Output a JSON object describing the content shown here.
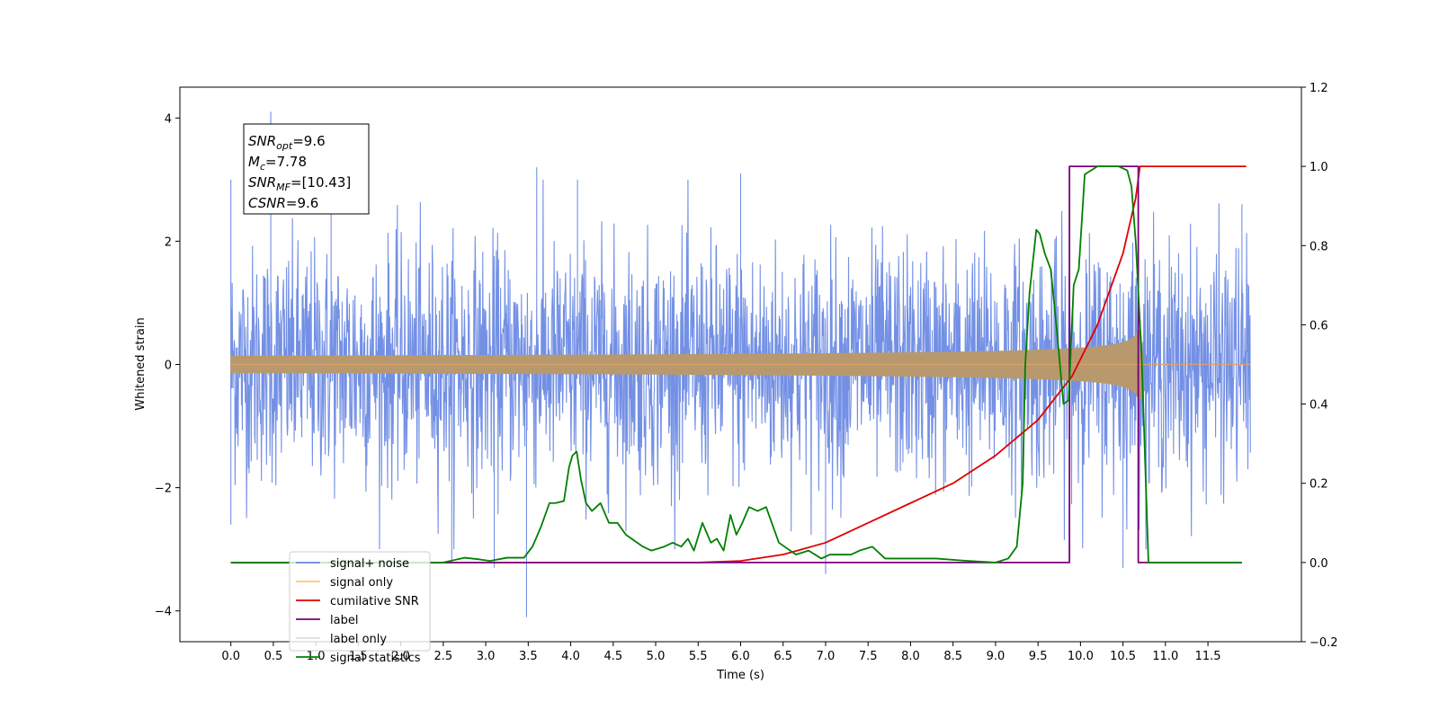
{
  "chart_data": {
    "type": "line",
    "xlabel": "Time (s)",
    "ylabel": "Whitened strain",
    "xlim": [
      -0.6,
      12.6
    ],
    "ylim": [
      -4.5,
      4.5
    ],
    "y2lim": [
      -0.2,
      1.2
    ],
    "xticks": [
      0.0,
      0.5,
      1.0,
      1.5,
      2.0,
      2.5,
      3.0,
      3.5,
      4.0,
      4.5,
      5.0,
      5.5,
      6.0,
      6.5,
      7.0,
      7.5,
      8.0,
      8.5,
      9.0,
      9.5,
      10.0,
      10.5,
      11.0,
      11.5
    ],
    "xtick_labels": [
      "0.0",
      "0.5",
      "1.0",
      "1.5",
      "2.0",
      "2.5",
      "3.0",
      "3.5",
      "4.0",
      "4.5",
      "5.0",
      "5.5",
      "6.0",
      "6.5",
      "7.0",
      "7.5",
      "8.0",
      "8.5",
      "9.0",
      "9.5",
      "10.0",
      "10.5",
      "11.0",
      "11.5"
    ],
    "yticks": [
      -4,
      -2,
      0,
      2,
      4
    ],
    "ytick_labels": [
      "−4",
      "−2",
      "0",
      "2",
      "4"
    ],
    "y2ticks": [
      -0.2,
      0.0,
      0.2,
      0.4,
      0.6,
      0.8,
      1.0,
      1.2
    ],
    "y2tick_labels": [
      "−0.2",
      "0.0",
      "0.2",
      "0.4",
      "0.6",
      "0.8",
      "1.0",
      "1.2"
    ],
    "grid": false,
    "legend_placement": "lower-left",
    "annotation": {
      "lines": [
        {
          "base": "SNR",
          "sub": "opt",
          "value": "=9.6"
        },
        {
          "base": "M",
          "sub": "c",
          "value": "=7.78"
        },
        {
          "base": "SNR",
          "sub": "MF",
          "value": "=[10.43]"
        },
        {
          "base": "CSNR",
          "sub": "",
          "value": "=9.6"
        }
      ]
    },
    "series": [
      {
        "name": "signal+ noise",
        "axis": "left",
        "color": "#6c8ae4",
        "style": "noise",
        "t_range": [
          0.0,
          12.0
        ],
        "std": 1.0,
        "spikes": [
          [
            0.0,
            3.0
          ],
          [
            0.0,
            -2.6
          ],
          [
            0.47,
            4.1
          ],
          [
            1.18,
            2.9
          ],
          [
            2.6,
            -3.2
          ],
          [
            3.1,
            -3.3
          ],
          [
            3.48,
            -4.1
          ],
          [
            3.6,
            3.2
          ],
          [
            4.08,
            3.0
          ],
          [
            6.0,
            3.1
          ],
          [
            7.0,
            -3.4
          ],
          [
            10.5,
            -3.3
          ],
          [
            11.9,
            2.6
          ]
        ]
      },
      {
        "name": "signal only",
        "axis": "left",
        "color": "#f5a623",
        "style": "chirp",
        "t_range": [
          0.0,
          12.0
        ],
        "merger_time": 10.72,
        "peak_amplitude": 0.55
      },
      {
        "name": "cumilative SNR",
        "axis": "right",
        "color": "#e00000",
        "x": [
          0.0,
          5.5,
          6.0,
          6.5,
          7.0,
          7.5,
          8.0,
          8.5,
          9.0,
          9.5,
          9.9,
          10.2,
          10.5,
          10.65,
          10.7,
          11.0,
          11.5,
          11.95
        ],
        "y": [
          0.0,
          0.0,
          0.004,
          0.02,
          0.05,
          0.1,
          0.15,
          0.2,
          0.27,
          0.36,
          0.47,
          0.6,
          0.78,
          0.92,
          1.0,
          1.0,
          1.0,
          1.0
        ]
      },
      {
        "name": "label",
        "axis": "right",
        "color": "#7a007a",
        "x": [
          0.0,
          9.87,
          9.87,
          10.68,
          10.68,
          11.0,
          11.9
        ],
        "y": [
          0.0,
          0.0,
          1.0,
          1.0,
          0.0,
          0.0,
          0.0
        ]
      },
      {
        "name": "label only",
        "axis": "right",
        "color": "#dddddd",
        "x": [],
        "y": []
      },
      {
        "name": "signal statistics",
        "axis": "right",
        "color": "#008000",
        "x": [
          0.0,
          2.5,
          2.75,
          2.92,
          3.05,
          3.25,
          3.45,
          3.55,
          3.65,
          3.75,
          3.82,
          3.92,
          3.98,
          4.02,
          4.07,
          4.12,
          4.18,
          4.25,
          4.3,
          4.35,
          4.45,
          4.55,
          4.65,
          4.85,
          4.95,
          5.1,
          5.2,
          5.3,
          5.38,
          5.45,
          5.55,
          5.65,
          5.72,
          5.8,
          5.88,
          5.95,
          6.02,
          6.1,
          6.2,
          6.3,
          6.45,
          6.65,
          6.8,
          6.95,
          7.05,
          7.15,
          7.3,
          7.4,
          7.55,
          7.7,
          8.0,
          8.3,
          8.6,
          9.0,
          9.15,
          9.25,
          9.32,
          9.35,
          9.4,
          9.48,
          9.52,
          9.58,
          9.65,
          9.72,
          9.8,
          9.86,
          9.92,
          9.98,
          10.05,
          10.2,
          10.45,
          10.55,
          10.6,
          10.65,
          10.72,
          10.8,
          11.9
        ],
        "y": [
          0.0,
          0.0,
          0.012,
          0.008,
          0.004,
          0.012,
          0.012,
          0.04,
          0.09,
          0.15,
          0.15,
          0.155,
          0.24,
          0.27,
          0.28,
          0.21,
          0.15,
          0.13,
          0.14,
          0.15,
          0.1,
          0.1,
          0.07,
          0.04,
          0.03,
          0.04,
          0.05,
          0.04,
          0.06,
          0.03,
          0.1,
          0.05,
          0.06,
          0.03,
          0.12,
          0.07,
          0.1,
          0.14,
          0.13,
          0.14,
          0.05,
          0.02,
          0.03,
          0.01,
          0.02,
          0.02,
          0.02,
          0.03,
          0.04,
          0.01,
          0.01,
          0.01,
          0.005,
          0.0,
          0.01,
          0.04,
          0.2,
          0.5,
          0.68,
          0.84,
          0.83,
          0.78,
          0.74,
          0.59,
          0.4,
          0.41,
          0.7,
          0.74,
          0.98,
          1.0,
          1.0,
          0.99,
          0.95,
          0.81,
          0.52,
          0.0,
          0.0
        ]
      }
    ]
  }
}
